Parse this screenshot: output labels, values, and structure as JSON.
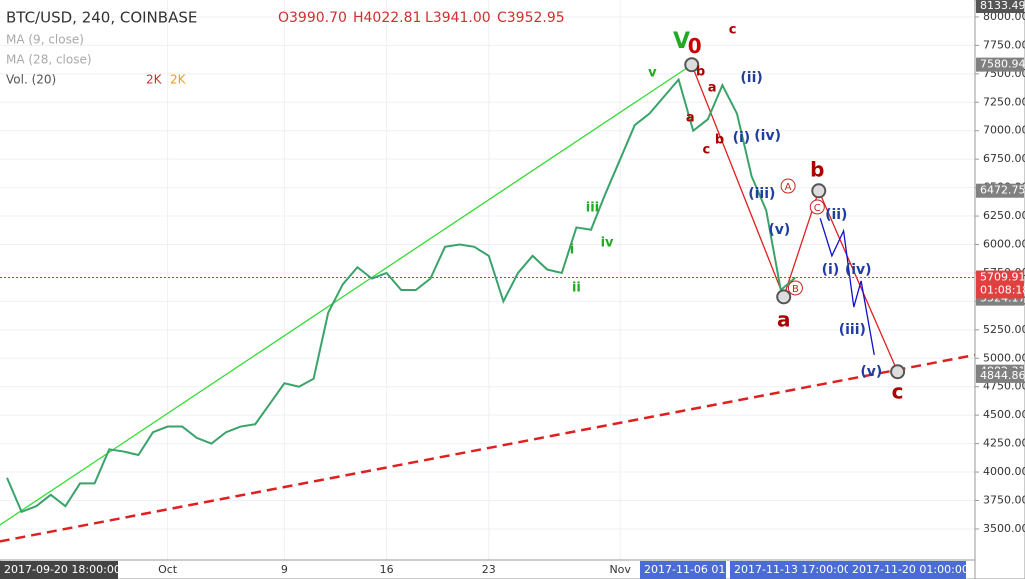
{
  "chart_data": {
    "type": "line",
    "header": {
      "symbol": "BTC/USD, 240, COINBASE",
      "open": "O3990.70",
      "high": "H4022.81",
      "low": "L3941.00",
      "close": "C3952.95"
    },
    "indicators": [
      "MA (9, close)",
      "MA (28, close)",
      "Vol. (20)"
    ],
    "volume_labels": [
      "2K",
      "2K"
    ],
    "categories": [
      null,
      null,
      null,
      null,
      null,
      null,
      null,
      null,
      null,
      null,
      null,
      "Oct",
      null,
      null,
      null,
      null,
      null,
      null,
      null,
      "9",
      null,
      null,
      null,
      null,
      null,
      null,
      "16",
      null,
      null,
      null,
      null,
      null,
      null,
      "23",
      null,
      null,
      null,
      null,
      null,
      null,
      null,
      null,
      "Nov",
      null,
      null,
      null,
      null,
      null,
      null,
      null,
      null,
      null,
      null,
      null,
      null,
      null,
      null,
      null,
      null,
      null,
      null,
      null
    ],
    "range_labels": [
      "2017-09-20 18:00:00",
      "2017-11-06 01:0",
      "2017-11-13 17:00:00",
      "2017-11-20 01:00:00"
    ],
    "series": [
      {
        "name": "BTC/USD",
        "color": "#3aa36a",
        "values": [
          3950,
          3650,
          3700,
          3800,
          3700,
          3900,
          3900,
          4200,
          4180,
          4150,
          4350,
          4400,
          4400,
          4300,
          4250,
          4350,
          4400,
          4420,
          4600,
          4780,
          4750,
          4820,
          5400,
          5650,
          5800,
          5700,
          5750,
          5600,
          5600,
          5700,
          5980,
          6000,
          5980,
          5900,
          5500,
          5750,
          5900,
          5780,
          5750,
          6150,
          6130,
          6450,
          6750,
          7050,
          7150,
          7300,
          7450,
          7000,
          7100,
          7400,
          7150,
          6600,
          6300,
          5600,
          5709.91,
          null,
          null,
          null,
          null,
          null,
          null,
          null
        ]
      }
    ],
    "ylim": [
      3227,
      8149
    ],
    "yticks": [
      {
        "value": 3500,
        "label": "3500.00"
      },
      {
        "value": 3750,
        "label": "3750.00"
      },
      {
        "value": 4000,
        "label": "4000.00"
      },
      {
        "value": 4250,
        "label": "4250.00"
      },
      {
        "value": 4500,
        "label": "4500.00"
      },
      {
        "value": 4750,
        "label": "4750.00"
      },
      {
        "value": 5000,
        "label": "5000.00"
      },
      {
        "value": 5250,
        "label": "5250.00"
      },
      {
        "value": 5500,
        "label": "5500.00"
      },
      {
        "value": 5750,
        "label": "5750.00"
      },
      {
        "value": 6000,
        "label": "6000.00"
      },
      {
        "value": 6250,
        "label": "6250.00"
      },
      {
        "value": 6500,
        "label": "6500.00"
      },
      {
        "value": 6750,
        "label": "6750.00"
      },
      {
        "value": 7000,
        "label": "7000.00"
      },
      {
        "value": 7250,
        "label": "7250.00"
      },
      {
        "value": 7500,
        "label": "7500.00"
      },
      {
        "value": 7750,
        "label": "7750.00"
      },
      {
        "value": 8000,
        "label": "8000.00"
      }
    ],
    "grid": true,
    "current_price": 5709.91,
    "countdown": "01:08:18",
    "price_labels": [
      {
        "value": 8133.49,
        "color": "#555555"
      },
      {
        "value": 7580.94,
        "color": "#808080"
      },
      {
        "value": 6472.75,
        "color": "#808080"
      },
      {
        "value": 5524.17,
        "color": "#808080"
      },
      {
        "value": 5654.36,
        "color": "#1e3fcc"
      },
      {
        "value": 4882.31,
        "color": "#808080"
      },
      {
        "value": 4844.86,
        "color": "#808080"
      }
    ],
    "trendlines": [
      {
        "color": "#33dd33",
        "dashed": false,
        "x": [
          -0.5,
          46.9
        ],
        "y": [
          3534,
          7580
        ]
      },
      {
        "color": "#e02020",
        "dashed": true,
        "x": [
          -0.5,
          66.3
        ],
        "y": [
          3390,
          5029
        ]
      },
      {
        "color": "#e02020",
        "dashed": false,
        "x": [
          46.9,
          53.2,
          55.6,
          61
        ],
        "y": [
          7580,
          5540,
          6472,
          4882
        ]
      },
      {
        "color": "#1010cc",
        "dashed": false,
        "x": [
          55.7,
          56.5,
          57.3,
          58.0,
          58.5,
          59.4
        ],
        "y": [
          6230,
          5900,
          6120,
          5450,
          5680,
          5030
        ]
      }
    ],
    "pivots": {
      "x": [
        46.9,
        53.2,
        55.6,
        61
      ],
      "y": [
        7580,
        5540,
        6472,
        4882
      ]
    },
    "annotations": [
      {
        "text": "V",
        "x": 46.2,
        "y": 7780,
        "color": "#22aa22",
        "size": 22
      },
      {
        "text": "0",
        "x": 47.1,
        "y": 7730,
        "color": "#cc0000",
        "size": 20
      },
      {
        "text": "v",
        "x": 44.2,
        "y": 7508,
        "color": "#22aa22",
        "size": 13
      },
      {
        "text": "iii",
        "x": 40.1,
        "y": 6321,
        "color": "#22aa22",
        "size": 13
      },
      {
        "text": "iv",
        "x": 41.1,
        "y": 6014,
        "color": "#22aa22",
        "size": 13
      },
      {
        "text": "i",
        "x": 38.7,
        "y": 5952,
        "color": "#22aa22",
        "size": 13
      },
      {
        "text": "ii",
        "x": 39.0,
        "y": 5618,
        "color": "#22aa22",
        "size": 13
      },
      {
        "text": "b",
        "x": 47.5,
        "y": 7517,
        "color": "#aa0000",
        "size": 13
      },
      {
        "text": "a",
        "x": 48.3,
        "y": 7376,
        "color": "#aa0000",
        "size": 13
      },
      {
        "text": "c",
        "x": 49.7,
        "y": 7886,
        "color": "#aa0000",
        "size": 13
      },
      {
        "text": "a",
        "x": 46.8,
        "y": 7112,
        "color": "#aa0000",
        "size": 13
      },
      {
        "text": "b",
        "x": 48.8,
        "y": 6919,
        "color": "#aa0000",
        "size": 13
      },
      {
        "text": "c",
        "x": 47.9,
        "y": 6831,
        "color": "#aa0000",
        "size": 13
      },
      {
        "text": "(ii)",
        "x": 51.0,
        "y": 7464,
        "color": "#1e3f9f",
        "size": 14
      },
      {
        "text": "(i)",
        "x": 50.3,
        "y": 6936,
        "color": "#1e3f9f",
        "size": 14
      },
      {
        "text": "(iv)",
        "x": 52.1,
        "y": 6954,
        "color": "#1e3f9f",
        "size": 14
      },
      {
        "text": "(iii)",
        "x": 51.7,
        "y": 6444,
        "color": "#1e3f9f",
        "size": 14
      },
      {
        "text": "(v)",
        "x": 52.9,
        "y": 6128,
        "color": "#1e3f9f",
        "size": 14
      },
      {
        "text": "a",
        "x": 53.2,
        "y": 5328,
        "color": "#aa0000",
        "size": 20
      },
      {
        "text": "b",
        "x": 55.5,
        "y": 6646,
        "color": "#aa0000",
        "size": 20
      },
      {
        "text": "c",
        "x": 61.0,
        "y": 4695,
        "color": "#aa0000",
        "size": 20
      },
      {
        "text": "(ii)",
        "x": 56.8,
        "y": 6260,
        "color": "#1e3f9f",
        "size": 14
      },
      {
        "text": "(i)",
        "x": 56.4,
        "y": 5776,
        "color": "#1e3f9f",
        "size": 14
      },
      {
        "text": "(iv)",
        "x": 58.3,
        "y": 5776,
        "color": "#1e3f9f",
        "size": 14
      },
      {
        "text": "(iii)",
        "x": 57.9,
        "y": 5249,
        "color": "#1e3f9f",
        "size": 14
      },
      {
        "text": "(v)",
        "x": 59.2,
        "y": 4880,
        "color": "#1e3f9f",
        "size": 14
      }
    ],
    "circled": [
      {
        "text": "A",
        "x": 53.5,
        "y": 6514
      },
      {
        "text": "C",
        "x": 55.5,
        "y": 6330
      },
      {
        "text": "B",
        "x": 54.0,
        "y": 5618
      }
    ]
  }
}
